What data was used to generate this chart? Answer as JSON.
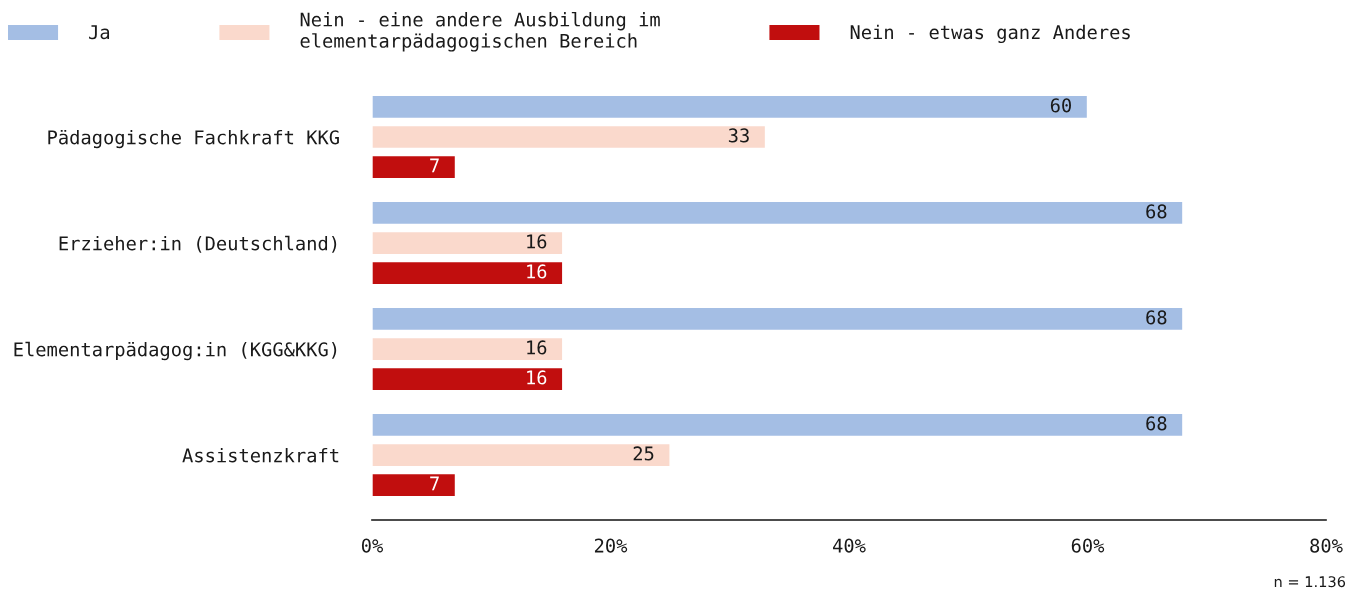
{
  "chart_data": {
    "type": "bar",
    "orientation": "horizontal",
    "categories": [
      "Pädagogische Fachkraft KKG",
      "Erzieher:in (Deutschland)",
      "Elementarpädagog:in (KGG&KKG)",
      "Assistenzkraft"
    ],
    "series": [
      {
        "name": "Ja",
        "color": "#a4bee4",
        "values": [
          60,
          68,
          68,
          68
        ]
      },
      {
        "name": "Nein - eine andere Ausbildung im\nelementarpädagogischen Bereich",
        "color": "#fad9cc",
        "values": [
          33,
          16,
          16,
          25
        ]
      },
      {
        "name": "Nein - etwas ganz Anderes",
        "color": "#c10e0e",
        "values": [
          7,
          16,
          16,
          7
        ]
      }
    ],
    "xlim": [
      0,
      80
    ],
    "xticks": [
      {
        "value": 0,
        "label": "0%"
      },
      {
        "value": 20,
        "label": "20%"
      },
      {
        "value": 40,
        "label": "40%"
      },
      {
        "value": 60,
        "label": "60%"
      },
      {
        "value": 80,
        "label": "80%"
      }
    ],
    "data_labels": true,
    "legend": "top",
    "annotations": [
      "n = 1.136"
    ]
  }
}
